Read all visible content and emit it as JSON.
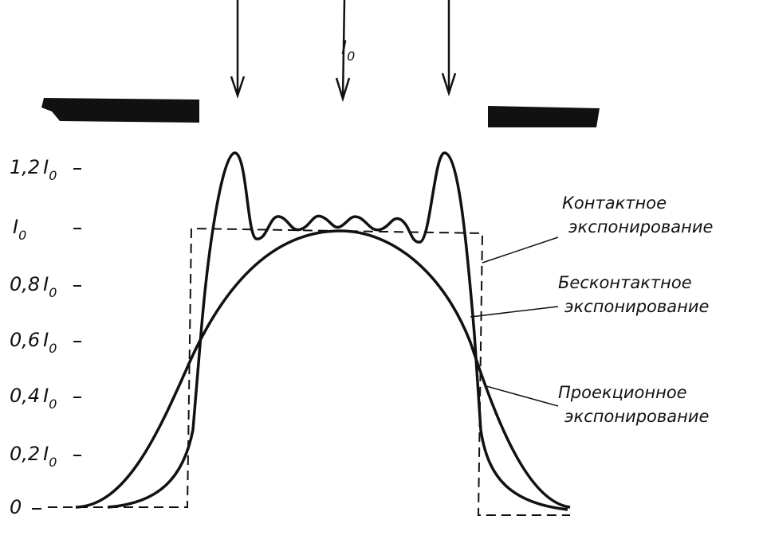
{
  "beam": {
    "symbol": "I",
    "subscript": "0"
  },
  "y_axis": {
    "labels": [
      {
        "coefficient": "1,2",
        "symbol": "I",
        "subscript": "0"
      },
      {
        "coefficient": "",
        "symbol": "I",
        "subscript": "0"
      },
      {
        "coefficient": "0,8",
        "symbol": "I",
        "subscript": "0"
      },
      {
        "coefficient": "0,6",
        "symbol": "I",
        "subscript": "0"
      },
      {
        "coefficient": "0,4",
        "symbol": "I",
        "subscript": "0"
      },
      {
        "coefficient": "0,2",
        "symbol": "I",
        "subscript": "0"
      },
      {
        "coefficient": "0",
        "symbol": "",
        "subscript": ""
      }
    ]
  },
  "annotations": [
    {
      "line1": "Контактное",
      "line2": "экспонирование"
    },
    {
      "line1": "Бесконтактное",
      "line2": "экспонирование"
    },
    {
      "line1": "Проекционное",
      "line2": "экспонирование"
    }
  ]
}
